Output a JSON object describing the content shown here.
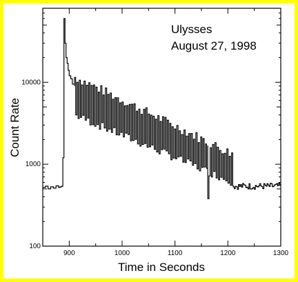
{
  "frame_color": "#ffff00",
  "chart_data": {
    "type": "line",
    "title": "",
    "annotation_lines": [
      "Ulysses",
      "August 27, 1998"
    ],
    "xlabel": "Time in Seconds",
    "ylabel": "Count Rate",
    "xlim": [
      850,
      1300
    ],
    "ylim": [
      100,
      80000
    ],
    "y_scale": "log",
    "x_tick_labels": [
      "900",
      "1000",
      "1100",
      "1200",
      "1300"
    ],
    "x_tick_values": [
      900,
      1000,
      1100,
      1200,
      1300
    ],
    "y_tick_labels": [
      "100",
      "1000",
      "10000"
    ],
    "y_tick_values": [
      100,
      1000,
      10000
    ],
    "grid": false,
    "line_color": "#000000",
    "series": [
      {
        "values_description_free": true,
        "x": [
          850,
          855,
          860,
          865,
          870,
          875,
          880,
          883,
          886,
          888,
          890,
          892,
          894,
          896,
          898,
          900,
          903,
          906,
          910
        ],
        "y": [
          520,
          540,
          500,
          530,
          510,
          545,
          520,
          530,
          540,
          1200,
          60000,
          30000,
          20000,
          17000,
          14000,
          12000,
          11000,
          9500,
          9000
        ]
      }
    ],
    "decay": {
      "x_start": 910,
      "x_end": 1210,
      "peak_start": 11500,
      "peak_end": 1300,
      "trough_start": 4000,
      "trough_end": 600,
      "period": 4.5
    },
    "tail": {
      "x_start": 1210,
      "x_end": 1300,
      "level": 540
    },
    "spikes": [
      {
        "x": 1162,
        "y": 380
      },
      {
        "x": 1253,
        "y": 950
      }
    ]
  }
}
